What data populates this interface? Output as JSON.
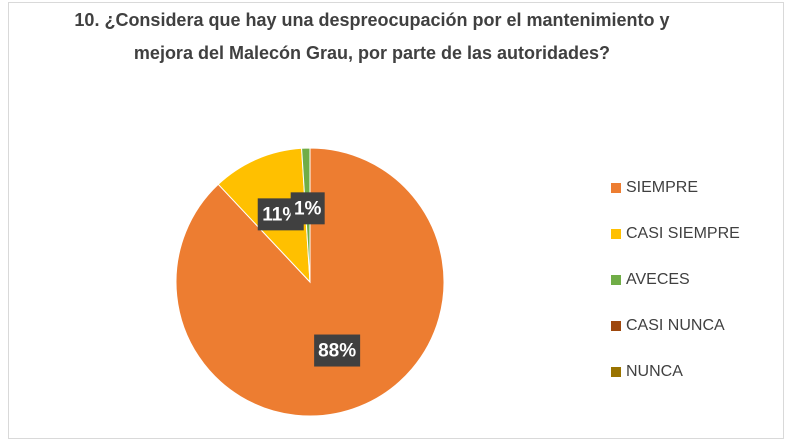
{
  "chart_data": {
    "type": "pie",
    "title": "10. ¿Considera que hay una despreocupación por el mantenimiento y mejora del Malecón Grau, por parte de las autoridades?",
    "categories": [
      "SIEMPRE",
      "CASI SIEMPRE",
      "AVECES",
      "CASI NUNCA",
      "NUNCA"
    ],
    "values": [
      88,
      11,
      1,
      0,
      0
    ],
    "value_labels": [
      "88%",
      "11%",
      "1%",
      null,
      null
    ],
    "colors": [
      "#ED7D31",
      "#FFC000",
      "#70AD47",
      "#9E480E",
      "#997300"
    ],
    "legend": "right"
  }
}
